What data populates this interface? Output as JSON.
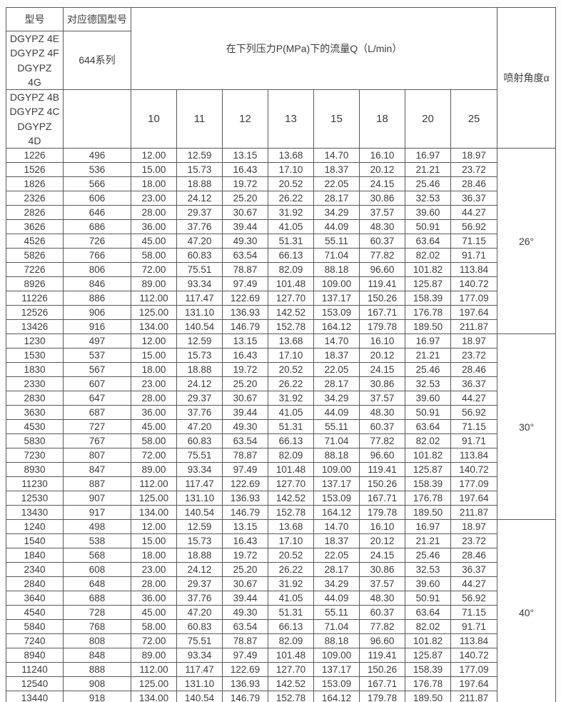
{
  "table": {
    "header": {
      "col_model": "型号",
      "col_german": "对应德国型号",
      "flow_title": "在下列压力P(MPa)下的流量Q（L/min）",
      "angle_title": "喷射角度α",
      "model_series_top": "DGYPZ 4E\nDGYPZ 4F\nDGYPZ\n4G",
      "german_series": "644系列",
      "model_series_bottom": "DGYPZ 4B\nDGYPZ 4C\nDGYPZ\n4D",
      "german_series_bottom": "",
      "pressures": [
        "10",
        "11",
        "12",
        "13",
        "15",
        "18",
        "20",
        "25"
      ]
    },
    "groups": [
      {
        "angle": "26°",
        "rows": [
          {
            "model": "1226",
            "german": "496",
            "flows": [
              "12.00",
              "12.59",
              "13.15",
              "13.68",
              "14.70",
              "16.10",
              "16.97",
              "18.97"
            ]
          },
          {
            "model": "1526",
            "german": "536",
            "flows": [
              "15.00",
              "15.73",
              "16.43",
              "17.10",
              "18.37",
              "20.12",
              "21.21",
              "23.72"
            ]
          },
          {
            "model": "1826",
            "german": "566",
            "flows": [
              "18.00",
              "18.88",
              "19.72",
              "20.52",
              "22.05",
              "24.15",
              "25.46",
              "28.46"
            ]
          },
          {
            "model": "2326",
            "german": "606",
            "flows": [
              "23.00",
              "24.12",
              "25.20",
              "26.22",
              "28.17",
              "30.86",
              "32.53",
              "36.37"
            ]
          },
          {
            "model": "2826",
            "german": "646",
            "flows": [
              "28.00",
              "29.37",
              "30.67",
              "31.92",
              "34.29",
              "37.57",
              "39.60",
              "44.27"
            ]
          },
          {
            "model": "3626",
            "german": "686",
            "flows": [
              "36.00",
              "37.76",
              "39.44",
              "41.05",
              "44.09",
              "48.30",
              "50.91",
              "56.92"
            ]
          },
          {
            "model": "4526",
            "german": "726",
            "flows": [
              "45.00",
              "47.20",
              "49.30",
              "51.31",
              "55.11",
              "60.37",
              "63.64",
              "71.15"
            ]
          },
          {
            "model": "5826",
            "german": "766",
            "flows": [
              "58.00",
              "60.83",
              "63.54",
              "66.13",
              "71.04",
              "77.82",
              "82.02",
              "91.71"
            ]
          },
          {
            "model": "7226",
            "german": "806",
            "flows": [
              "72.00",
              "75.51",
              "78.87",
              "82.09",
              "88.18",
              "96.60",
              "101.82",
              "113.84"
            ]
          },
          {
            "model": "8926",
            "german": "846",
            "flows": [
              "89.00",
              "93.34",
              "97.49",
              "101.48",
              "109.00",
              "119.41",
              "125.87",
              "140.72"
            ]
          },
          {
            "model": "11226",
            "german": "886",
            "flows": [
              "112.00",
              "117.47",
              "122.69",
              "127.70",
              "137.17",
              "150.26",
              "158.39",
              "177.09"
            ]
          },
          {
            "model": "12526",
            "german": "906",
            "flows": [
              "125.00",
              "131.10",
              "136.93",
              "142.52",
              "153.09",
              "167.71",
              "176.78",
              "197.64"
            ]
          },
          {
            "model": "13426",
            "german": "916",
            "flows": [
              "134.00",
              "140.54",
              "146.79",
              "152.78",
              "164.12",
              "179.78",
              "189.50",
              "211.87"
            ]
          }
        ]
      },
      {
        "angle": "30°",
        "rows": [
          {
            "model": "1230",
            "german": "497",
            "flows": [
              "12.00",
              "12.59",
              "13.15",
              "13.68",
              "14.70",
              "16.10",
              "16.97",
              "18.97"
            ]
          },
          {
            "model": "1530",
            "german": "537",
            "flows": [
              "15.00",
              "15.73",
              "16.43",
              "17.10",
              "18.37",
              "20.12",
              "21.21",
              "23.72"
            ]
          },
          {
            "model": "1830",
            "german": "567",
            "flows": [
              "18.00",
              "18.88",
              "19.72",
              "20.52",
              "22.05",
              "24.15",
              "25.46",
              "28.46"
            ]
          },
          {
            "model": "2330",
            "german": "607",
            "flows": [
              "23.00",
              "24.12",
              "25.20",
              "26.22",
              "28.17",
              "30.86",
              "32.53",
              "36.37"
            ]
          },
          {
            "model": "2830",
            "german": "647",
            "flows": [
              "28.00",
              "29.37",
              "30.67",
              "31.92",
              "34.29",
              "37.57",
              "39.60",
              "44.27"
            ]
          },
          {
            "model": "3630",
            "german": "687",
            "flows": [
              "36.00",
              "37.76",
              "39.44",
              "41.05",
              "44.09",
              "48.30",
              "50.91",
              "56.92"
            ]
          },
          {
            "model": "4530",
            "german": "727",
            "flows": [
              "45.00",
              "47.20",
              "49.30",
              "51.31",
              "55.11",
              "60.37",
              "63.64",
              "71.15"
            ]
          },
          {
            "model": "5830",
            "german": "767",
            "flows": [
              "58.00",
              "60.83",
              "63.54",
              "66.13",
              "71.04",
              "77.82",
              "82.02",
              "91.71"
            ]
          },
          {
            "model": "7230",
            "german": "807",
            "flows": [
              "72.00",
              "75.51",
              "78.87",
              "82.09",
              "88.18",
              "96.60",
              "101.82",
              "113.84"
            ]
          },
          {
            "model": "8930",
            "german": "847",
            "flows": [
              "89.00",
              "93.34",
              "97.49",
              "101.48",
              "109.00",
              "119.41",
              "125.87",
              "140.72"
            ]
          },
          {
            "model": "11230",
            "german": "887",
            "flows": [
              "112.00",
              "117.47",
              "122.69",
              "127.70",
              "137.17",
              "150.26",
              "158.39",
              "177.09"
            ]
          },
          {
            "model": "12530",
            "german": "907",
            "flows": [
              "125.00",
              "131.10",
              "136.93",
              "142.52",
              "153.09",
              "167.71",
              "176.78",
              "197.64"
            ]
          },
          {
            "model": "13430",
            "german": "917",
            "flows": [
              "134.00",
              "140.54",
              "146.79",
              "152.78",
              "164.12",
              "179.78",
              "189.50",
              "211.87"
            ]
          }
        ]
      },
      {
        "angle": "40°",
        "rows": [
          {
            "model": "1240",
            "german": "498",
            "flows": [
              "12.00",
              "12.59",
              "13.15",
              "13.68",
              "14.70",
              "16.10",
              "16.97",
              "18.97"
            ]
          },
          {
            "model": "1540",
            "german": "538",
            "flows": [
              "15.00",
              "15.73",
              "16.43",
              "17.10",
              "18.37",
              "20.12",
              "21.21",
              "23.72"
            ]
          },
          {
            "model": "1840",
            "german": "568",
            "flows": [
              "18.00",
              "18.88",
              "19.72",
              "20.52",
              "22.05",
              "24.15",
              "25.46",
              "28.46"
            ]
          },
          {
            "model": "2340",
            "german": "608",
            "flows": [
              "23.00",
              "24.12",
              "25.20",
              "26.22",
              "28.17",
              "30.86",
              "32.53",
              "36.37"
            ]
          },
          {
            "model": "2840",
            "german": "648",
            "flows": [
              "28.00",
              "29.37",
              "30.67",
              "31.92",
              "34.29",
              "37.57",
              "39.60",
              "44.27"
            ]
          },
          {
            "model": "3640",
            "german": "688",
            "flows": [
              "36.00",
              "37.76",
              "39.44",
              "41.05",
              "44.09",
              "48.30",
              "50.91",
              "56.92"
            ]
          },
          {
            "model": "4540",
            "german": "728",
            "flows": [
              "45.00",
              "47.20",
              "49.30",
              "51.31",
              "55.11",
              "60.37",
              "63.64",
              "71.15"
            ]
          },
          {
            "model": "5840",
            "german": "768",
            "flows": [
              "58.00",
              "60.83",
              "63.54",
              "66.13",
              "71.04",
              "77.82",
              "82.02",
              "91.71"
            ]
          },
          {
            "model": "7240",
            "german": "808",
            "flows": [
              "72.00",
              "75.51",
              "78.87",
              "82.09",
              "88.18",
              "96.60",
              "101.82",
              "113.84"
            ]
          },
          {
            "model": "8940",
            "german": "848",
            "flows": [
              "89.00",
              "93.34",
              "97.49",
              "101.48",
              "109.00",
              "119.41",
              "125.87",
              "140.72"
            ]
          },
          {
            "model": "11240",
            "german": "888",
            "flows": [
              "112.00",
              "117.47",
              "122.69",
              "127.70",
              "137.17",
              "150.26",
              "158.39",
              "177.09"
            ]
          },
          {
            "model": "12540",
            "german": "908",
            "flows": [
              "125.00",
              "131.10",
              "136.93",
              "142.52",
              "153.09",
              "167.71",
              "176.78",
              "197.64"
            ]
          },
          {
            "model": "13440",
            "german": "918",
            "flows": [
              "134.00",
              "140.54",
              "146.79",
              "152.78",
              "164.12",
              "179.78",
              "189.50",
              "211.87"
            ]
          }
        ]
      }
    ]
  },
  "colors": {
    "border": "#595959",
    "text": "#3d3d3d",
    "background": "#ffffff"
  }
}
